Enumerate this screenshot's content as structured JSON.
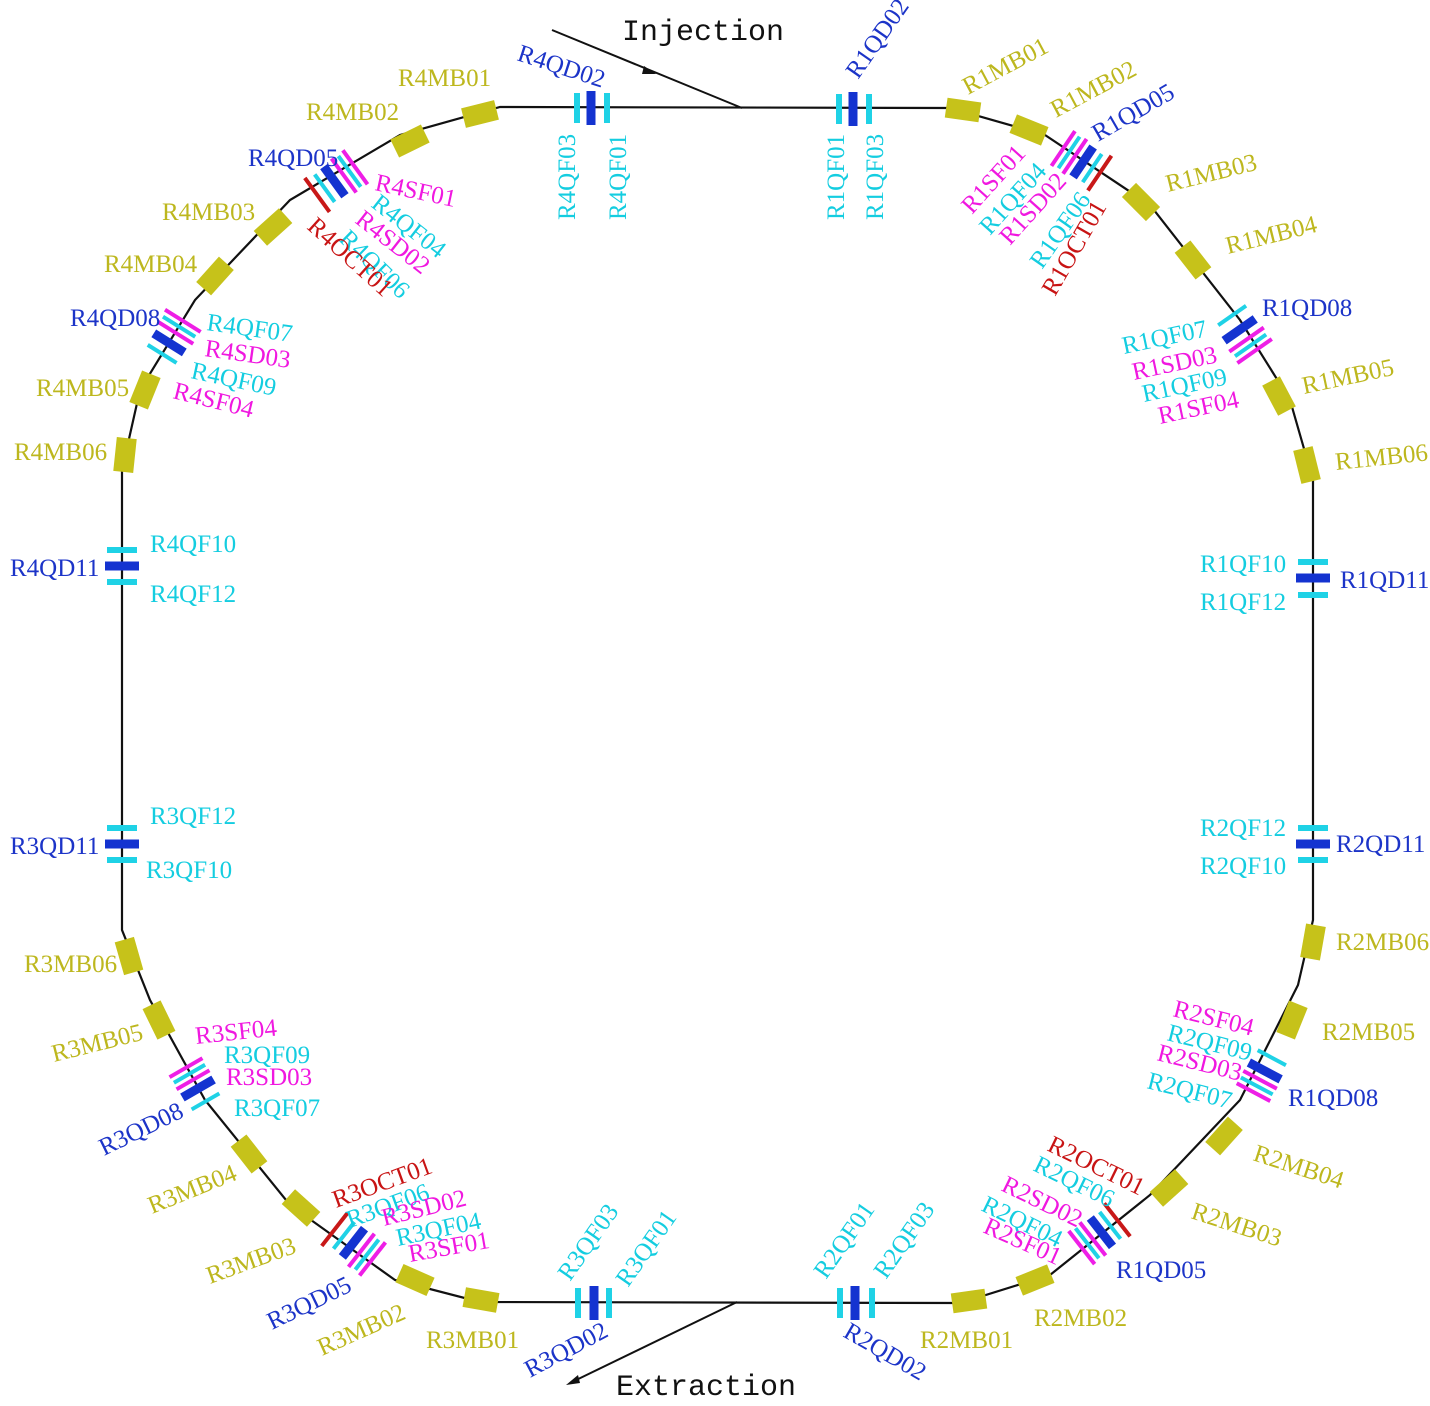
{
  "titles": {
    "injection": "Injection",
    "extraction": "Extraction"
  },
  "colors": {
    "ring": "#111111",
    "dipole": "#c6c21a",
    "focusing_quad": "#1fd2e6",
    "defocusing_quad": "#1433d0",
    "sextupole": "#ee1ee6",
    "octupole": "#c81818",
    "label_dipole": "#bdb71e",
    "label_focusing": "#14cde0",
    "label_defocusing": "#1c34c8",
    "label_sextupole": "#f018e0",
    "label_octupole": "#c81414"
  },
  "labels": {
    "R1QD02": "R1QD02",
    "R1QF01": "R1QF01",
    "R1QF03": "R1QF03",
    "R1MB01": "R1MB01",
    "R1MB02": "R1MB02",
    "R1QD05": "R1QD05",
    "R1SF01": "R1SF01",
    "R1QF04": "R1QF04",
    "R1SD02": "R1SD02",
    "R1QF06": "R1QF06",
    "R1OCT01": "R1OCT01",
    "R1MB03": "R1MB03",
    "R1MB04": "R1MB04",
    "R1QD08": "R1QD08",
    "R1QF07": "R1QF07",
    "R1SD03": "R1SD03",
    "R1QF09": "R1QF09",
    "R1SF04": "R1SF04",
    "R1MB05": "R1MB05",
    "R1MB06": "R1MB06",
    "R1QF10": "R1QF10",
    "R1QD11": "R1QD11",
    "R1QF12": "R1QF12",
    "R2QF12": "R2QF12",
    "R2QD11": "R2QD11",
    "R2QF10": "R2QF10",
    "R2MB06": "R2MB06",
    "R2SF04": "R2SF04",
    "R2QF09": "R2QF09",
    "R2SD03": "R2SD03",
    "R2QF07": "R2QF07",
    "R2MB05": "R2MB05",
    "R2QD08_label": "R1QD08",
    "R2MB04": "R2MB04",
    "R2OCT01": "R2OCT01",
    "R2QF06": "R2QF06",
    "R2SD02": "R2SD02",
    "R2QF04": "R2QF04",
    "R2SF01": "R2SF01",
    "R2MB03": "R2MB03",
    "R2QD05_label": "R1QD05",
    "R2MB02": "R2MB02",
    "R2MB01": "R2MB01",
    "R2QF01": "R2QF01",
    "R2QF03": "R2QF03",
    "R2QD02": "R2QD02",
    "R3QF03": "R3QF03",
    "R3QF01": "R3QF01",
    "R3QD02": "R3QD02",
    "R3MB01": "R3MB01",
    "R3MB02": "R3MB02",
    "R3QD05": "R3QD05",
    "R3OCT01": "R3OCT01",
    "R3QF06": "R3QF06",
    "R3SD02": "R3SD02",
    "R3QF04": "R3QF04",
    "R3SF01": "R3SF01",
    "R3MB03": "R3MB03",
    "R3MB04": "R3MB04",
    "R3QD08": "R3QD08",
    "R3SF04": "R3SF04",
    "R3QF09": "R3QF09",
    "R3SD03": "R3SD03",
    "R3QF07": "R3QF07",
    "R3MB05": "R3MB05",
    "R3MB06": "R3MB06",
    "R3QF12": "R3QF12",
    "R3QD11": "R3QD11",
    "R3QF10": "R3QF10",
    "R4QF10": "R4QF10",
    "R4QD11": "R4QD11",
    "R4QF12": "R4QF12",
    "R4MB06": "R4MB06",
    "R4MB05": "R4MB05",
    "R4QD08": "R4QD08",
    "R4QF07": "R4QF07",
    "R4SD03": "R4SD03",
    "R4QF09": "R4QF09",
    "R4SF04": "R4SF04",
    "R4MB04": "R4MB04",
    "R4MB03": "R4MB03",
    "R4QD05": "R4QD05",
    "R4SF01": "R4SF01",
    "R4QF04": "R4QF04",
    "R4SD02": "R4SD02",
    "R4QF06": "R4QF06",
    "R4OCT01": "R4OCT01",
    "R4MB02": "R4MB02",
    "R4MB01": "R4MB01",
    "R4QD02": "R4QD02",
    "R4QF03": "R4QF03",
    "R4QF01": "R4QF01"
  }
}
